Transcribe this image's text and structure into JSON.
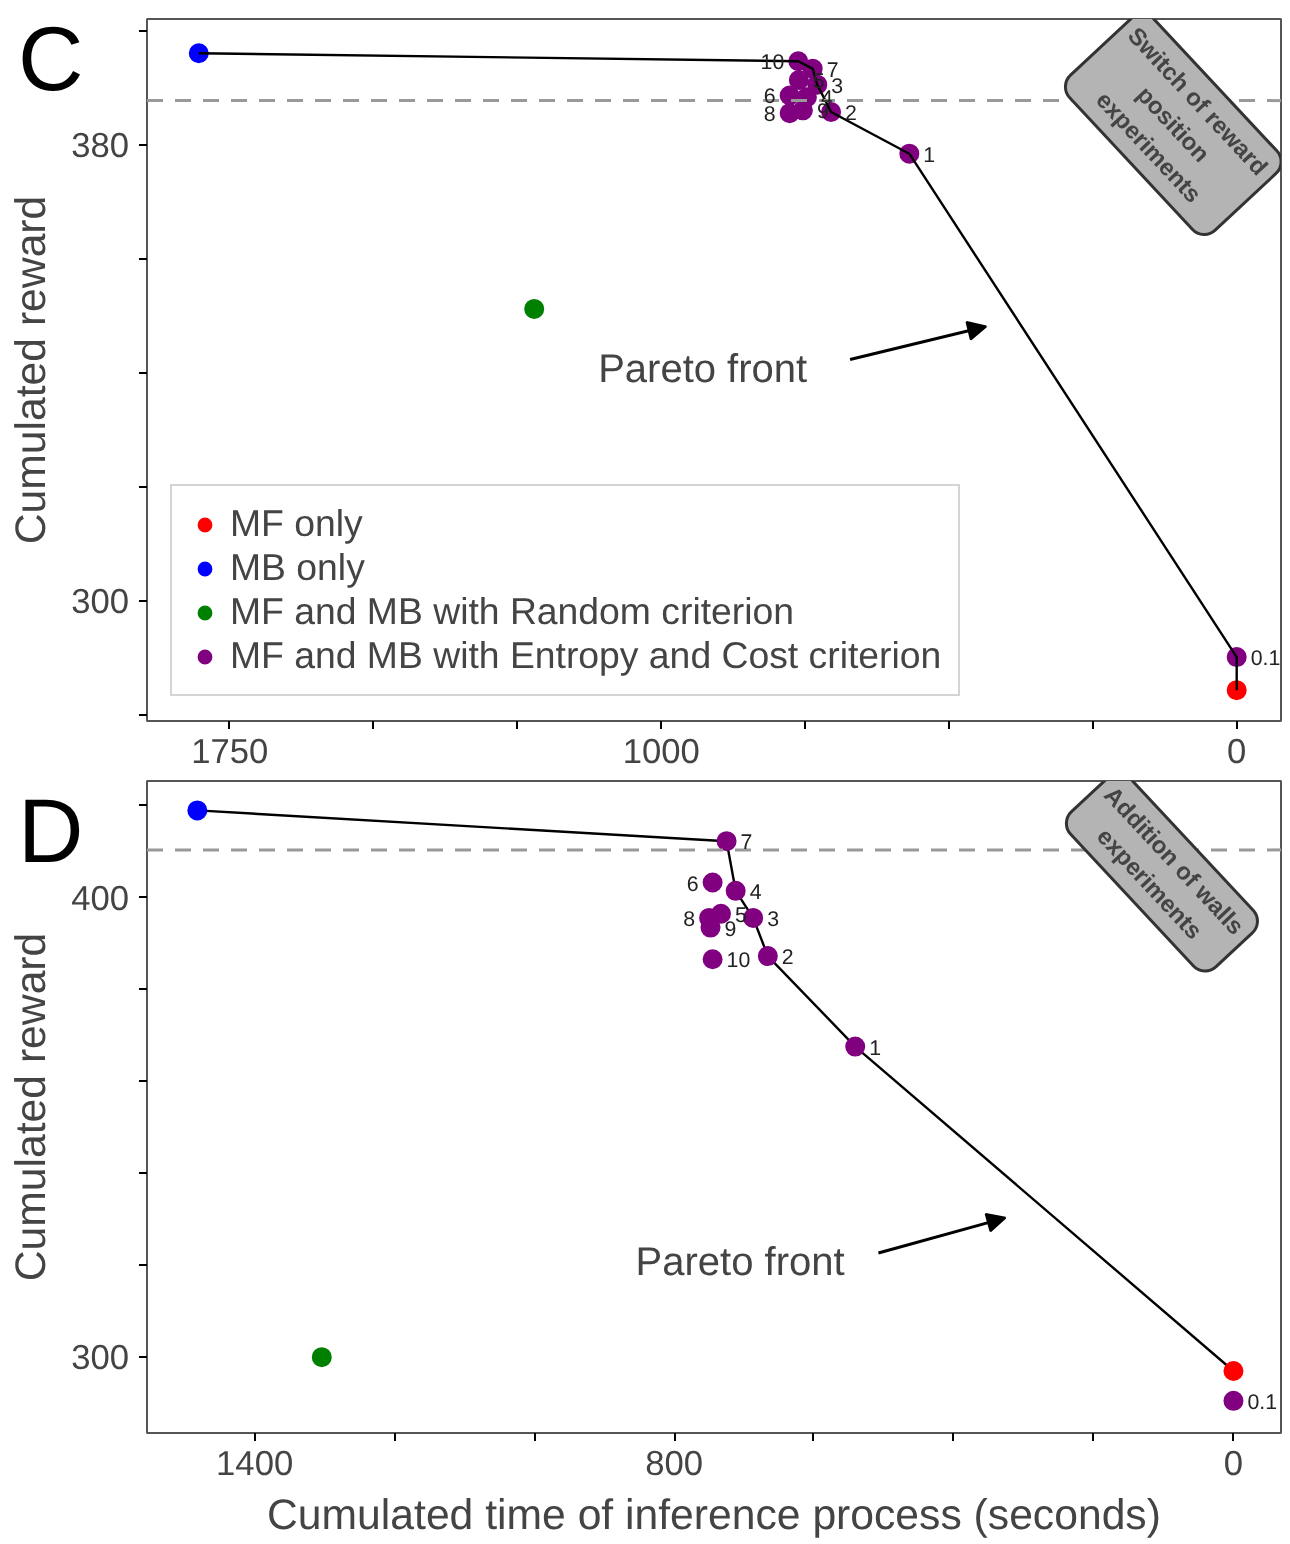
{
  "chart_data": [
    {
      "type": "scatter",
      "ylabel": "Cumulated reward",
      "xlim": [
        1894,
        -77
      ],
      "ylim": [
        279,
        402
      ],
      "xticks": [
        1750,
        {
          "value": 1500,
          "label": null
        },
        {
          "value": 1250,
          "label": null
        },
        1000,
        {
          "value": 750,
          "label": null
        },
        {
          "value": 500,
          "label": null
        },
        {
          "value": 250,
          "label": null
        },
        0
      ],
      "yticks": [
        {
          "value": 280,
          "label": null
        },
        300,
        {
          "value": 320,
          "label": null
        },
        {
          "value": 340,
          "label": null
        },
        {
          "value": 360,
          "label": null
        },
        380,
        {
          "value": 400,
          "label": null
        }
      ],
      "grid": false,
      "legend": "bottom left",
      "marker": "circle",
      "series": [
        {
          "name": "MF only",
          "color": "#ff0000",
          "x": [
            0
          ],
          "values": [
            284.4
          ]
        },
        {
          "name": "MB only",
          "color": "#0000ff",
          "x": [
            1804
          ],
          "values": [
            396.0
          ]
        },
        {
          "name": "MF and MB with Random criterion",
          "color": "#008000",
          "x": [
            1221
          ],
          "values": [
            351.2
          ]
        },
        {
          "name": "MF and MB with Entropy and Cost criterion",
          "color": "#800080",
          "x": [
            762,
            737,
            761,
            729,
            777,
            747,
            777,
            754,
            705,
            569,
            0
          ],
          "values": [
            394.6,
            393.3,
            391.3,
            390.5,
            388.6,
            388.3,
            385.5,
            386.0,
            385.7,
            378.4,
            290.2
          ]
        },
        {
          "type": "line",
          "marker": "none",
          "color": "#000000",
          "x": [
            1804,
            762,
            737,
            729,
            705,
            569,
            0,
            0
          ],
          "values": [
            396.0,
            394.6,
            393.3,
            390.5,
            385.7,
            378.4,
            290.2,
            284.4
          ]
        }
      ],
      "ref_lines": [
        {
          "axis": "y",
          "value": 387.7,
          "color": "#999999",
          "line_style": "dashed"
        }
      ],
      "annotations": [
        "C",
        "Switch of reward\nposition\nexperiments",
        "Pareto front",
        {
          "text": "10",
          "x": 762,
          "y": 394.6
        },
        {
          "text": "7",
          "x": 737,
          "y": 393.3
        },
        {
          "text": "5",
          "x": 761,
          "y": 391.3
        },
        {
          "text": "3",
          "x": 729,
          "y": 390.5
        },
        {
          "text": "6",
          "x": 777,
          "y": 388.6
        },
        {
          "text": "4",
          "x": 747,
          "y": 388.3
        },
        {
          "text": "8",
          "x": 777,
          "y": 385.5
        },
        {
          "text": "9",
          "x": 754,
          "y": 386.0
        },
        {
          "text": "2",
          "x": 705,
          "y": 385.7
        },
        {
          "text": "1",
          "x": 569,
          "y": 378.4
        },
        {
          "text": "0.1",
          "x": 0,
          "y": 290.2
        }
      ]
    },
    {
      "type": "scatter",
      "xlabel": "Cumulated time of inference process (seconds)",
      "ylabel": "Cumulated reward",
      "xlim": [
        1554,
        -68
      ],
      "ylim": [
        283.5,
        425.4
      ],
      "xticks": [
        1400,
        {
          "value": 1200,
          "label": null
        },
        {
          "value": 1000,
          "label": null
        },
        800,
        {
          "value": 600,
          "label": null
        },
        {
          "value": 400,
          "label": null
        },
        {
          "value": 200,
          "label": null
        },
        0
      ],
      "yticks": [
        300,
        {
          "value": 320,
          "label": null
        },
        {
          "value": 340,
          "label": null
        },
        {
          "value": 360,
          "label": null
        },
        {
          "value": 380,
          "label": null
        },
        400,
        {
          "value": 420,
          "label": null
        }
      ],
      "grid": false,
      "marker": "circle",
      "series": [
        {
          "type": "line",
          "marker": "none",
          "color": "#000000",
          "x": [
            1482,
            725,
            712,
            687,
            666,
            541,
            0
          ],
          "values": [
            419.0,
            412.3,
            401.5,
            395.6,
            387.3,
            367.6,
            297.0
          ]
        },
        {
          "color": "#ff0000",
          "x": [
            0
          ],
          "values": [
            297.0
          ]
        },
        {
          "color": "#0000ff",
          "x": [
            1482
          ],
          "values": [
            419.0
          ]
        },
        {
          "color": "#008000",
          "x": [
            1304
          ],
          "values": [
            300.0
          ]
        },
        {
          "color": "#800080",
          "x": [
            725,
            745,
            712,
            733,
            750,
            748,
            687,
            666,
            745,
            541,
            0
          ],
          "values": [
            412.3,
            403.3,
            401.5,
            396.5,
            395.6,
            393.5,
            395.6,
            387.3,
            386.6,
            367.6,
            290.5
          ]
        }
      ],
      "ref_lines": [
        {
          "axis": "y",
          "value": 410.4,
          "color": "#999999",
          "line_style": "dashed"
        }
      ],
      "annotations": [
        "D",
        "Addition of walls\nexperiments",
        "Pareto front",
        {
          "text": "7",
          "x": 725,
          "y": 412.3
        },
        {
          "text": "6",
          "x": 745,
          "y": 403.3
        },
        {
          "text": "4",
          "x": 712,
          "y": 401.5
        },
        {
          "text": "5",
          "x": 733,
          "y": 396.5
        },
        {
          "text": "8",
          "x": 750,
          "y": 395.6
        },
        {
          "text": "9",
          "x": 748,
          "y": 393.5
        },
        {
          "text": "3",
          "x": 687,
          "y": 395.6
        },
        {
          "text": "2",
          "x": 666,
          "y": 387.3
        },
        {
          "text": "10",
          "x": 745,
          "y": 386.6
        },
        {
          "text": "1",
          "x": 541,
          "y": 367.6
        },
        {
          "text": "0.1",
          "x": 0,
          "y": 290.5
        }
      ]
    }
  ]
}
